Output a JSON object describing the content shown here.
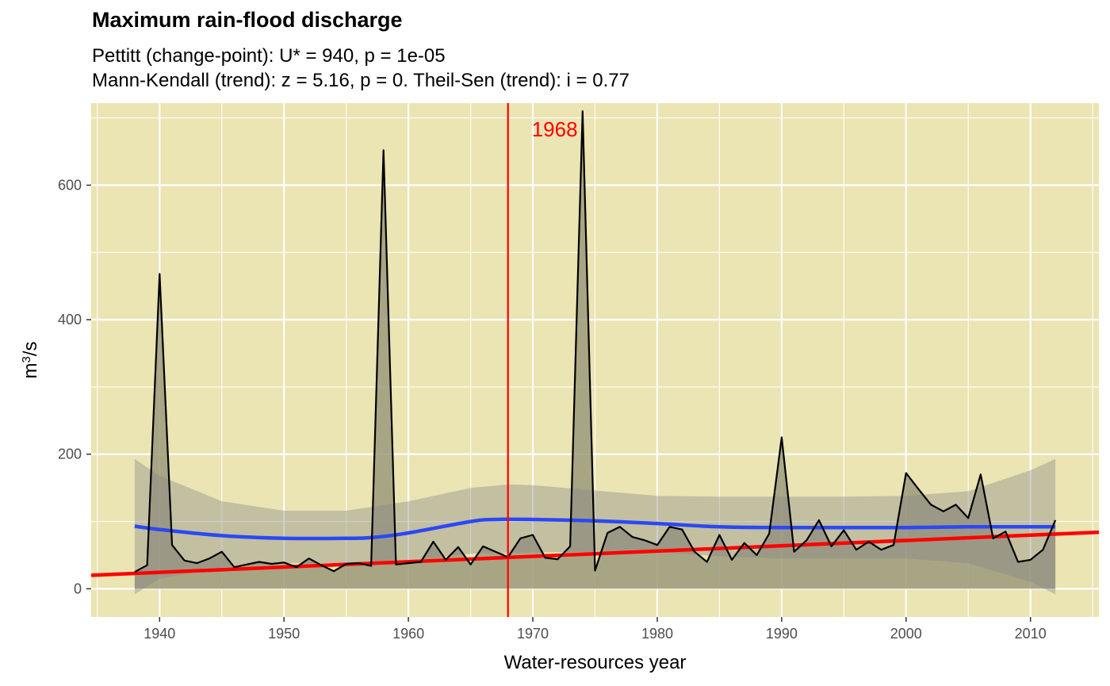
{
  "title": "Maximum rain-flood discharge",
  "subtitle_line1": "Pettitt (change-point): U* = 940, p = 1e-05",
  "subtitle_line2": "Mann-Kendall (trend): z = 5.16, p = 0. Theil-Sen (trend): i = 0.77",
  "colors": {
    "panel_bg": "#EBE4B3",
    "grid": "#FFFFFF",
    "area_fill": "#9C9A7B",
    "series_line": "#000000",
    "ci_band": "#888888",
    "loess_line": "#2B48F5",
    "trend_line": "#FF0000",
    "changepoint_line": "#FF0000",
    "changepoint_label": "#FF0000"
  },
  "chart_data": {
    "type": "area",
    "xlabel": "Water-resources year",
    "ylabel_base": "m",
    "ylabel_sup": "3",
    "ylabel_tail": "/s",
    "xlim": [
      1934.5,
      2015.5
    ],
    "ylim": [
      -42,
      722
    ],
    "x_ticks": [
      1940,
      1950,
      1960,
      1970,
      1980,
      1990,
      2000,
      2010
    ],
    "x_tick_labels": [
      "1940",
      "1950",
      "1960",
      "1970",
      "1980",
      "1990",
      "2000",
      "2010"
    ],
    "y_ticks": [
      0,
      200,
      400,
      600
    ],
    "y_tick_labels": [
      "0",
      "200",
      "400",
      "600"
    ],
    "grid": true,
    "changepoint": {
      "year": 1968,
      "label": "1968"
    },
    "series": {
      "x": [
        1938,
        1939,
        1940,
        1941,
        1942,
        1943,
        1944,
        1945,
        1946,
        1947,
        1948,
        1949,
        1950,
        1951,
        1952,
        1953,
        1954,
        1955,
        1956,
        1957,
        1958,
        1959,
        1960,
        1961,
        1962,
        1963,
        1964,
        1965,
        1966,
        1967,
        1968,
        1969,
        1970,
        1971,
        1972,
        1973,
        1974,
        1975,
        1976,
        1977,
        1978,
        1979,
        1980,
        1981,
        1982,
        1983,
        1984,
        1985,
        1986,
        1987,
        1988,
        1989,
        1990,
        1991,
        1992,
        1993,
        1994,
        1995,
        1996,
        1997,
        1998,
        1999,
        2000,
        2001,
        2002,
        2003,
        2004,
        2005,
        2006,
        2007,
        2008,
        2009,
        2010,
        2011,
        2012
      ],
      "y": [
        25,
        35,
        468,
        65,
        42,
        38,
        45,
        55,
        32,
        36,
        40,
        37,
        39,
        32,
        45,
        35,
        26,
        37,
        38,
        34,
        652,
        36,
        38,
        40,
        70,
        43,
        62,
        36,
        63,
        55,
        47,
        75,
        80,
        46,
        44,
        63,
        710,
        27,
        83,
        92,
        77,
        72,
        65,
        92,
        88,
        55,
        40,
        80,
        43,
        68,
        50,
        82,
        225,
        55,
        72,
        102,
        63,
        87,
        58,
        70,
        58,
        65,
        172,
        148,
        125,
        115,
        125,
        105,
        170,
        75,
        85,
        40,
        43,
        58,
        102
      ]
    },
    "loess": {
      "x": [
        1938,
        1940,
        1945,
        1950,
        1955,
        1957,
        1960,
        1965,
        1967,
        1970,
        1975,
        1980,
        1985,
        1990,
        1995,
        2000,
        2005,
        2010,
        2012
      ],
      "y": [
        93,
        88,
        79,
        75,
        75,
        76,
        83,
        100,
        103,
        103,
        101,
        97,
        92,
        91,
        91,
        91,
        92,
        92,
        92
      ]
    },
    "ci_band": {
      "x": [
        1938,
        1940,
        1945,
        1950,
        1955,
        1960,
        1965,
        1968,
        1970,
        1975,
        1980,
        1985,
        1990,
        1995,
        2000,
        2005,
        2010,
        2012
      ],
      "upper": [
        193,
        168,
        130,
        116,
        116,
        130,
        150,
        155,
        154,
        146,
        138,
        137,
        137,
        137,
        138,
        145,
        176,
        193
      ],
      "lower": [
        -8,
        15,
        32,
        38,
        38,
        42,
        52,
        53,
        54,
        55,
        55,
        48,
        45,
        45,
        45,
        38,
        10,
        -8
      ]
    },
    "theil_sen": {
      "x": [
        1934.5,
        2015.5
      ],
      "y": [
        20,
        84
      ]
    }
  }
}
